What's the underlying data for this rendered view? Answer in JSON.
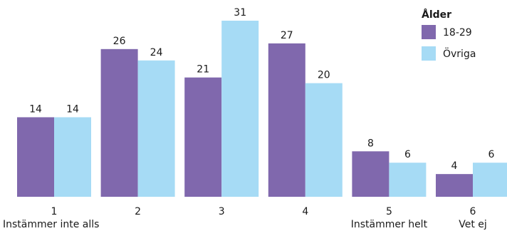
{
  "chart_data": {
    "type": "bar",
    "categories": [
      "1",
      "2",
      "3",
      "4",
      "5",
      "6"
    ],
    "category_sublabels": [
      "Instämmer inte alls",
      "",
      "",
      "",
      "Instämmer helt",
      "Vet ej"
    ],
    "series": [
      {
        "name": "18-29",
        "values": [
          14,
          26,
          21,
          27,
          8,
          4
        ],
        "color": "#8068ad"
      },
      {
        "name": "Övriga",
        "values": [
          14,
          24,
          31,
          20,
          6,
          6
        ],
        "color": "#a6dbf5"
      }
    ],
    "legend_title": "Ålder",
    "legend_position": "top-right",
    "ylim": [
      0,
      31
    ],
    "grid": false,
    "xlabel": "",
    "ylabel": ""
  }
}
